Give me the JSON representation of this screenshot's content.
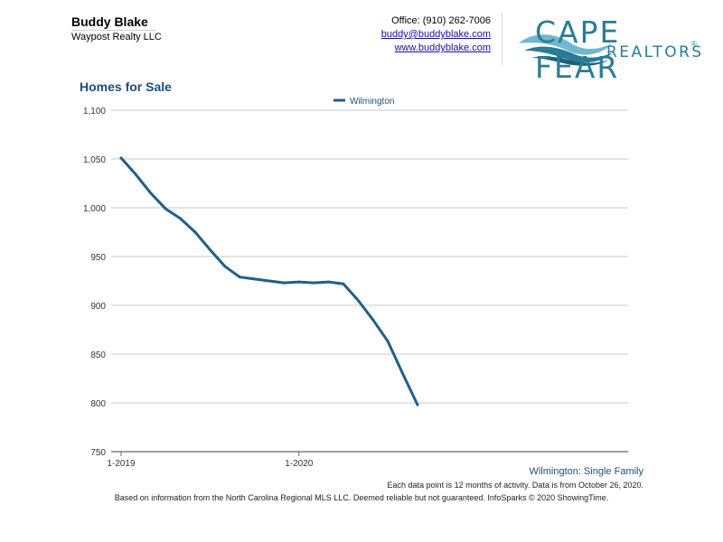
{
  "header": {
    "agent_name": "Buddy Blake",
    "company": "Waypost Realty LLC",
    "office": "Office: (910) 262-7006",
    "email": "buddy@buddyblake.com",
    "website": "www.buddyblake.com"
  },
  "logo": {
    "line1": "CAPE FEAR",
    "line2": "REALTORS",
    "reg": "®",
    "colors": [
      "#2a7c95",
      "#6fb8cf",
      "#1f5f7a"
    ]
  },
  "footer": {
    "series_label": "Wilmington: Single Family",
    "note": "Each data point is 12 months of activity. Data is from October 26, 2020.",
    "source": "Based on information from the North Carolina Regional MLS LLC. Deemed reliable but not guaranteed. InfoSparks © 2020 ShowingTime."
  },
  "chart_data": {
    "type": "line",
    "title": "Homes for Sale",
    "xlabel": "",
    "ylabel": "",
    "x": [
      "1-2019",
      "2-2019",
      "3-2019",
      "4-2019",
      "5-2019",
      "6-2019",
      "7-2019",
      "8-2019",
      "9-2019",
      "10-2019",
      "11-2019",
      "12-2019",
      "1-2020",
      "2-2020",
      "3-2020",
      "4-2020",
      "5-2020",
      "6-2020",
      "7-2020",
      "8-2020",
      "9-2020"
    ],
    "x_tick_labels": [
      "1-2019",
      "1-2020"
    ],
    "x_tick_values": [
      "1-2019",
      "1-2020"
    ],
    "series": [
      {
        "name": "Wilmington",
        "color": "#1f5f8b",
        "values": [
          1051,
          1034,
          1015,
          999,
          989,
          975,
          957,
          940,
          929,
          927,
          925,
          923,
          924,
          923,
          924,
          922,
          905,
          885,
          863,
          830,
          798
        ]
      }
    ],
    "ylim": [
      750,
      1100
    ],
    "y_ticks": [
      750,
      800,
      850,
      900,
      950,
      1000,
      1050,
      1100
    ],
    "y_tick_labels": [
      "750",
      "800",
      "850",
      "900",
      "950",
      "1,000",
      "1,050",
      "1,100"
    ],
    "grid": true,
    "legend": "top-center"
  }
}
